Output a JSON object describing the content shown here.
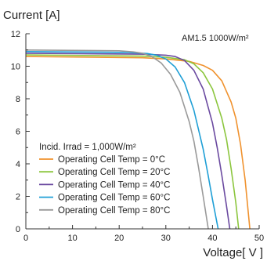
{
  "chart_data": {
    "type": "line",
    "ylabel": "Current [A]",
    "xlabel": "Voltage[ V ]",
    "condition": "AM1.5  1000W/m²",
    "legend_title": "Incid. Irrad = 1,000W/m²",
    "legend_placement": "bottom-left",
    "grid": false,
    "xlim": [
      0,
      50
    ],
    "ylim": [
      0,
      12
    ],
    "x_ticks": [
      0,
      10,
      20,
      30,
      40,
      50
    ],
    "y_ticks": [
      0,
      2,
      4,
      6,
      8,
      10,
      12
    ],
    "series": [
      {
        "name": "Operating Cell Temp = 0°C",
        "color": "#f0922e",
        "x": [
          0,
          25,
          30,
          35,
          38,
          40,
          42,
          44,
          45,
          46,
          47,
          47.5,
          48
        ],
        "y": [
          10.6,
          10.52,
          10.45,
          10.3,
          10.05,
          9.75,
          9.1,
          7.8,
          6.8,
          5.2,
          3.0,
          1.5,
          0
        ]
      },
      {
        "name": "Operating Cell Temp = 20°C",
        "color": "#8cc63e",
        "x": [
          0,
          25,
          30,
          34,
          36,
          38,
          40,
          42,
          43,
          44,
          45,
          45.6
        ],
        "y": [
          10.7,
          10.62,
          10.55,
          10.4,
          10.15,
          9.6,
          8.6,
          6.8,
          5.5,
          3.7,
          1.6,
          0
        ]
      },
      {
        "name": "Operating Cell Temp = 40°C",
        "color": "#6b4aa0",
        "x": [
          0,
          25,
          30,
          32,
          34,
          36,
          38,
          40,
          41,
          42,
          43,
          43.7
        ],
        "y": [
          10.8,
          10.74,
          10.68,
          10.6,
          10.35,
          9.75,
          8.6,
          6.5,
          5.0,
          3.3,
          1.4,
          0
        ]
      },
      {
        "name": "Operating Cell Temp = 60°C",
        "color": "#1f9fd6",
        "x": [
          0,
          22,
          26,
          28,
          30,
          32,
          34,
          36,
          38,
          39,
          40,
          41.2
        ],
        "y": [
          10.9,
          10.85,
          10.78,
          10.68,
          10.45,
          9.95,
          9.0,
          7.3,
          4.9,
          3.4,
          1.8,
          0
        ]
      },
      {
        "name": "Operating Cell Temp = 80°C",
        "color": "#9a9a9a",
        "x": [
          0,
          20,
          23,
          25,
          27,
          29,
          31,
          33,
          35,
          36,
          37,
          38,
          39.1
        ],
        "y": [
          11.0,
          10.95,
          10.88,
          10.8,
          10.6,
          10.2,
          9.5,
          8.4,
          6.6,
          5.4,
          3.8,
          2.0,
          0
        ]
      }
    ]
  }
}
